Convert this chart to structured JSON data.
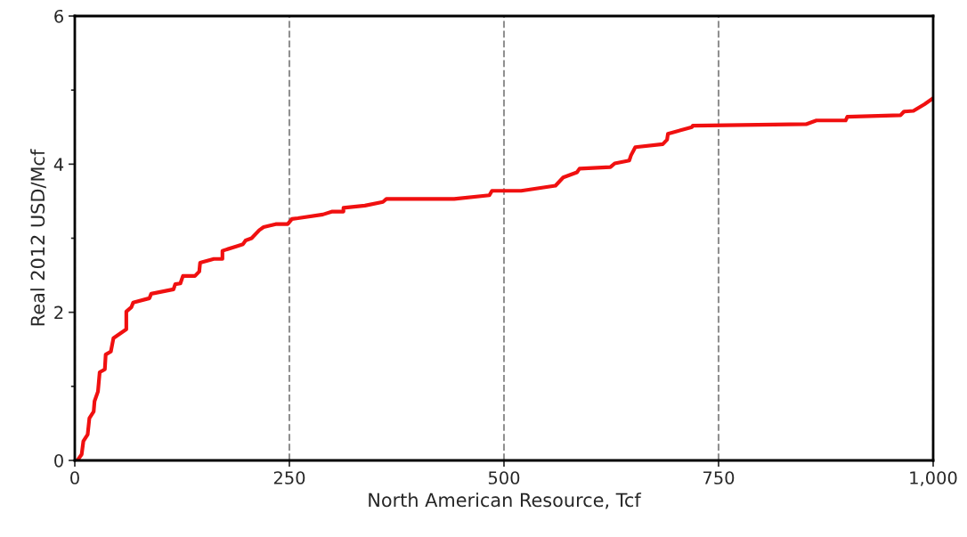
{
  "chart_data": {
    "type": "line",
    "xlabel": "North American Resource, Tcf",
    "ylabel": "Real 2012 USD/Mcf",
    "xlim": [
      0,
      1000
    ],
    "xticks": [
      0,
      250,
      500,
      750,
      {
        "value": 1000,
        "label": "1,000"
      }
    ],
    "ylim": [
      0,
      6
    ],
    "yticks": [
      0,
      {
        "value": 1,
        "label": null
      },
      2,
      {
        "value": 3,
        "label": null
      },
      4,
      {
        "value": 5,
        "label": null
      },
      6
    ],
    "grid": "x",
    "legend": false,
    "marker": "none",
    "line_style": "solid",
    "series": [
      {
        "color": "#f01010",
        "x": [
          3,
          8,
          10,
          15,
          17,
          22,
          23,
          27,
          29,
          35,
          36,
          42,
          45,
          60,
          60,
          66,
          68,
          87,
          89,
          115,
          117,
          123,
          126,
          140,
          145,
          146,
          162,
          172,
          172,
          188,
          196,
          199,
          206,
          215,
          220,
          234,
          248,
          253,
          260,
          289,
          300,
          313,
          313,
          338,
          359,
          363,
          442,
          483,
          486,
          520,
          560,
          569,
          585,
          588,
          624,
          629,
          646,
          648,
          653,
          685,
          690,
          691,
          719,
          720,
          852,
          864,
          898,
          900,
          962,
          966,
          977,
          990,
          1000
        ],
        "values": [
          0,
          0.08,
          0.26,
          0.35,
          0.57,
          0.66,
          0.8,
          0.93,
          1.19,
          1.23,
          1.43,
          1.47,
          1.65,
          1.77,
          2.01,
          2.07,
          2.13,
          2.19,
          2.25,
          2.31,
          2.38,
          2.39,
          2.49,
          2.49,
          2.55,
          2.67,
          2.72,
          2.72,
          2.83,
          2.89,
          2.92,
          2.97,
          3.0,
          3.11,
          3.15,
          3.19,
          3.19,
          3.26,
          3.27,
          3.32,
          3.36,
          3.36,
          3.41,
          3.44,
          3.49,
          3.53,
          3.53,
          3.58,
          3.64,
          3.64,
          3.71,
          3.82,
          3.89,
          3.94,
          3.96,
          4.01,
          4.05,
          4.12,
          4.23,
          4.27,
          4.33,
          4.41,
          4.5,
          4.52,
          4.54,
          4.59,
          4.59,
          4.64,
          4.66,
          4.71,
          4.72,
          4.81,
          4.89
        ]
      }
    ]
  }
}
